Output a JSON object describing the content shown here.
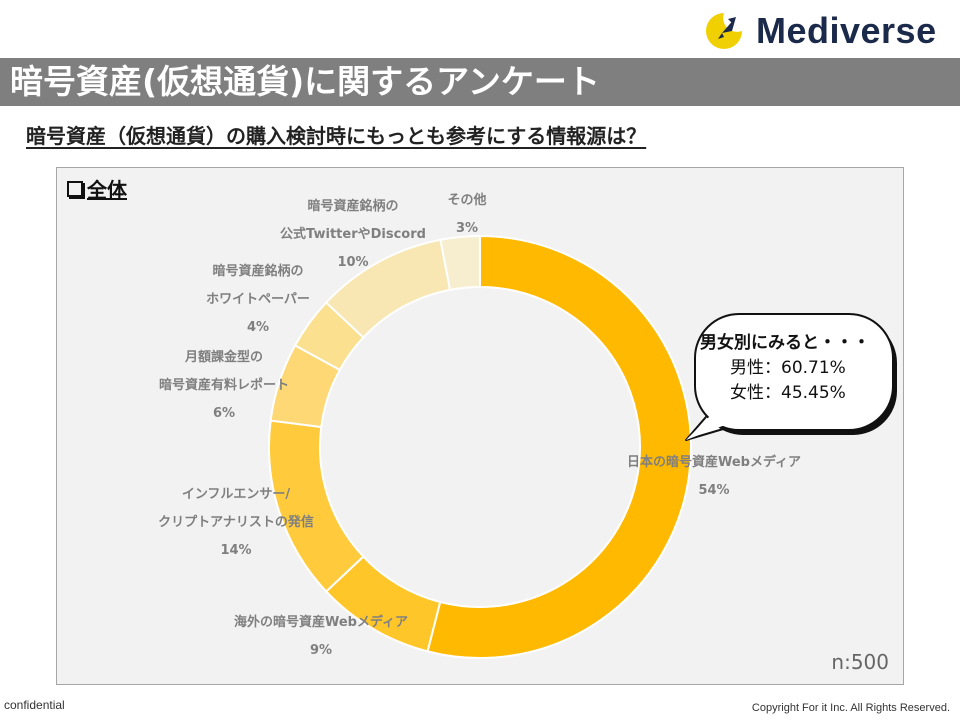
{
  "header": {
    "logo_text": "Mediverse",
    "title": "暗号資産(仮想通貨)に関するアンケート",
    "subtitle": "暗号資産（仮想通貨）の購入検討時にもっとも参考にする情報源は？"
  },
  "panel": {
    "label": "全体",
    "sample_size": "n:500"
  },
  "callout": {
    "heading": "男女別にみると・・・",
    "lines": [
      "男性：60.71%",
      "女性：45.45%"
    ]
  },
  "footer": {
    "left": "confidential",
    "right": "Copyright For it Inc. All Rights Reserved."
  },
  "colors": {
    "title_bar": "#7f7f7f",
    "series": [
      "#ffb900",
      "#ffc629",
      "#ffcb3c",
      "#fdd874",
      "#fbe08f",
      "#f8e7b2",
      "#f7eed0"
    ]
  },
  "chart_data": {
    "type": "pie",
    "donut": true,
    "categories": [
      "日本の暗号資産Webメディア",
      "海外の暗号資産Webメディア",
      "インフルエンサー/クリプトアナリストの発信",
      "月額課金型の暗号資産有料レポート",
      "暗号資産銘柄のホワイトペーパー",
      "暗号資産銘柄の公式Twitterやdiscord",
      "その他"
    ],
    "label_lines": [
      [
        "日本の暗号資産Webメディア"
      ],
      [
        "海外の暗号資産Webメディア"
      ],
      [
        "インフルエンサー/",
        "クリプトアナリストの発信"
      ],
      [
        "月額課金型の",
        "暗号資産有料レポート"
      ],
      [
        "暗号資産銘柄の",
        "ホワイトペーパー"
      ],
      [
        "暗号資産銘柄の",
        "公式TwitterやDiscord"
      ],
      [
        "その他"
      ]
    ],
    "values": [
      54,
      9,
      14,
      6,
      4,
      10,
      3
    ],
    "value_labels": [
      "54%",
      "9%",
      "14%",
      "6%",
      "4%",
      "10%",
      "3%"
    ]
  }
}
